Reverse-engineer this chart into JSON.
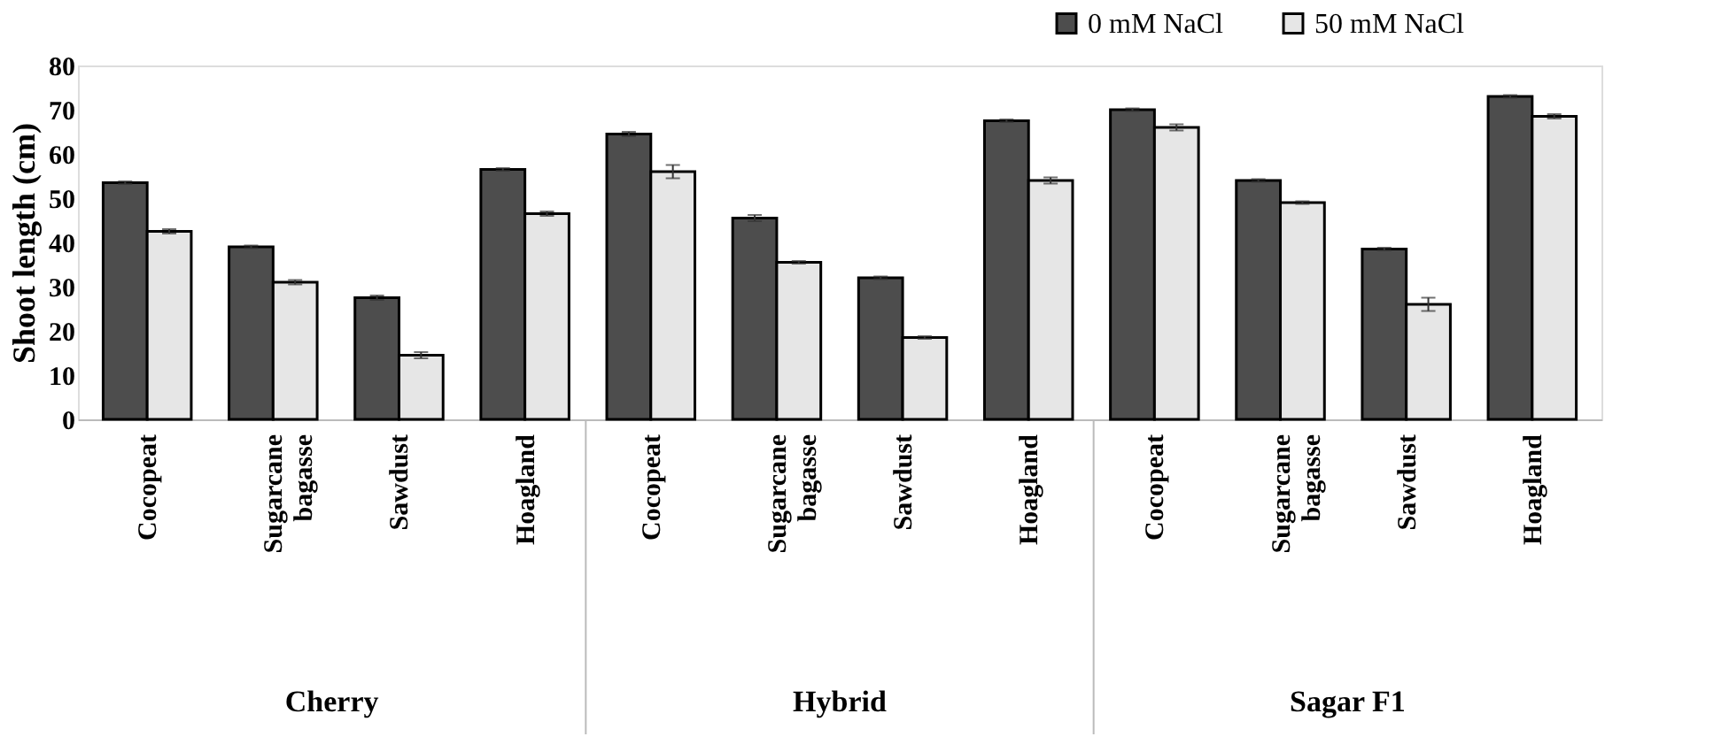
{
  "chart_data": {
    "type": "bar",
    "categories": [
      "Cocopeat",
      "Sugarcane bagasse",
      "Sawdust",
      "Hoagland",
      "Cocopeat",
      "Sugarcane bagasse",
      "Sawdust",
      "Hoagland",
      "Cocopeat",
      "Sugarcane bagasse",
      "Sawdust",
      "Hoagland"
    ],
    "series": [
      {
        "name": "0 mM NaCl",
        "color": "#4d4d4d",
        "values": [
          53.5,
          39,
          27.5,
          56.5,
          64.5,
          45.5,
          32,
          67.5,
          70,
          54,
          38.5,
          73
        ],
        "errors": [
          0.3,
          0.3,
          0.5,
          0.3,
          0.5,
          0.7,
          0.3,
          0.3,
          0.3,
          0.3,
          0.3,
          0.3
        ]
      },
      {
        "name": "50 mM NaCl",
        "color": "#e6e6e6",
        "values": [
          42.5,
          31,
          14.5,
          46.5,
          56,
          35.5,
          18.5,
          54,
          66,
          49,
          26,
          68.5
        ],
        "errors": [
          0.5,
          0.5,
          0.7,
          0.5,
          1.5,
          0.3,
          0.3,
          0.7,
          0.7,
          0.3,
          1.5,
          0.5
        ]
      }
    ],
    "ylabel": "Shoot length (cm)",
    "ylim": [
      0,
      80
    ],
    "yticks": [
      0,
      10,
      20,
      30,
      40,
      50,
      60,
      70,
      80
    ],
    "annotations": [
      "Cherry",
      "Hybrid",
      "Sagar F1"
    ],
    "grid": false,
    "legend": "top right"
  }
}
